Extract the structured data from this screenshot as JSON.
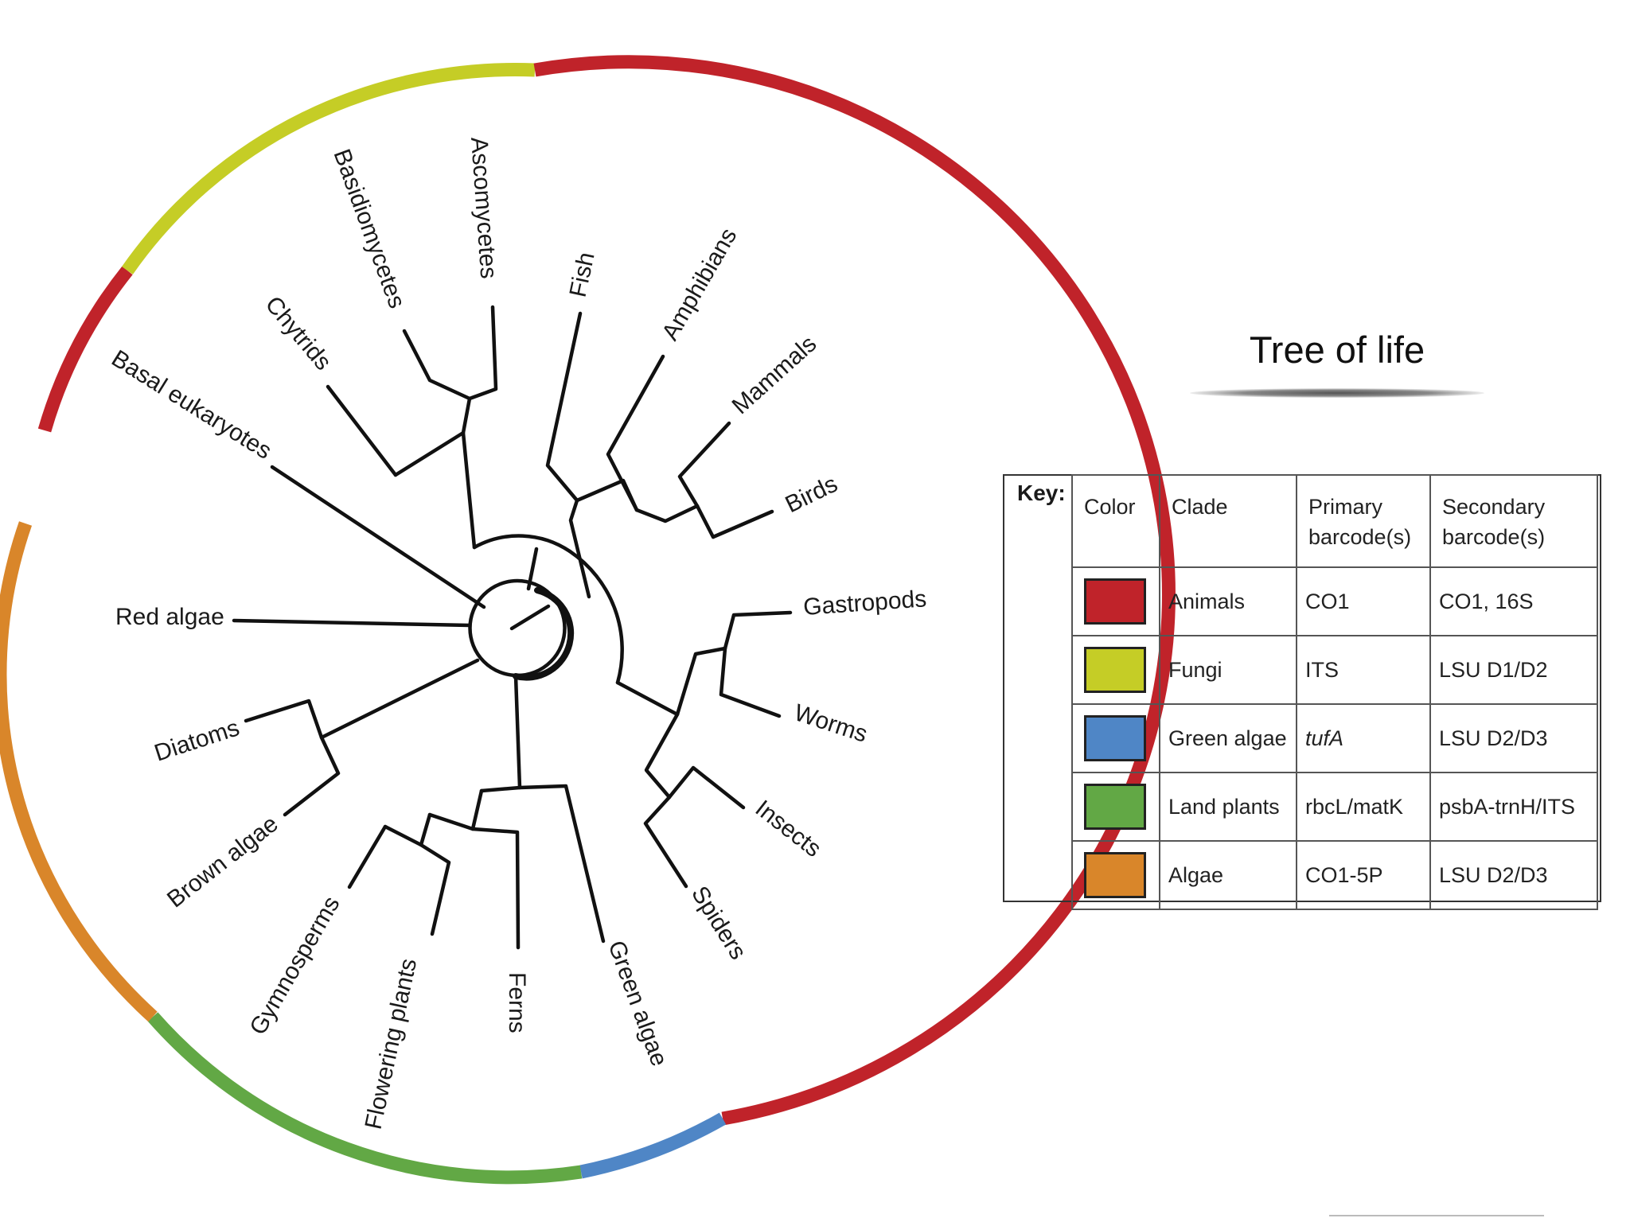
{
  "title": "Tree of life",
  "taxa": {
    "ascomycetes": "Ascomycetes",
    "basidiomycetes": "Basidiomycetes",
    "chytrids": "Chytrids",
    "basal_eukaryotes": "Basal eukaryotes",
    "fish": "Fish",
    "amphibians": "Amphibians",
    "mammals": "Mammals",
    "birds": "Birds",
    "gastropods": "Gastropods",
    "worms": "Worms",
    "insects": "Insects",
    "spiders": "Spiders",
    "red_algae": "Red algae",
    "diatoms": "Diatoms",
    "brown_algae": "Brown algae",
    "gymnosperms": "Gymnosperms",
    "flowering_plants": "Flowering plants",
    "ferns": "Ferns",
    "green_algae": "Green algae"
  },
  "colors": {
    "animals": "#c0232a",
    "fungi": "#c5cd26",
    "green_algae": "#4f86c6",
    "land_plants": "#62a845",
    "algae": "#d9862a"
  },
  "key": {
    "label": "Key:",
    "headers": {
      "color": "Color",
      "clade": "Clade",
      "primary": [
        "Primary",
        "barcode(s)"
      ],
      "secondary": [
        "Secondary",
        "barcode(s)"
      ]
    },
    "rows": [
      {
        "clade": "Animals",
        "color": "#c0232a",
        "primary": "CO1",
        "secondary": "CO1, 16S"
      },
      {
        "clade": "Fungi",
        "color": "#c5cd26",
        "primary": "ITS",
        "secondary": "LSU D1/D2"
      },
      {
        "clade": "Green algae",
        "color": "#4f86c6",
        "primary": "tufA",
        "secondary": "LSU D2/D3"
      },
      {
        "clade": "Land plants",
        "color": "#62a845",
        "primary": "rbcL/matK",
        "secondary": "psbA-trnH/ITS"
      },
      {
        "clade": "Algae",
        "color": "#d9862a",
        "primary": "CO1-5P",
        "secondary": "LSU D2/D3"
      }
    ]
  }
}
